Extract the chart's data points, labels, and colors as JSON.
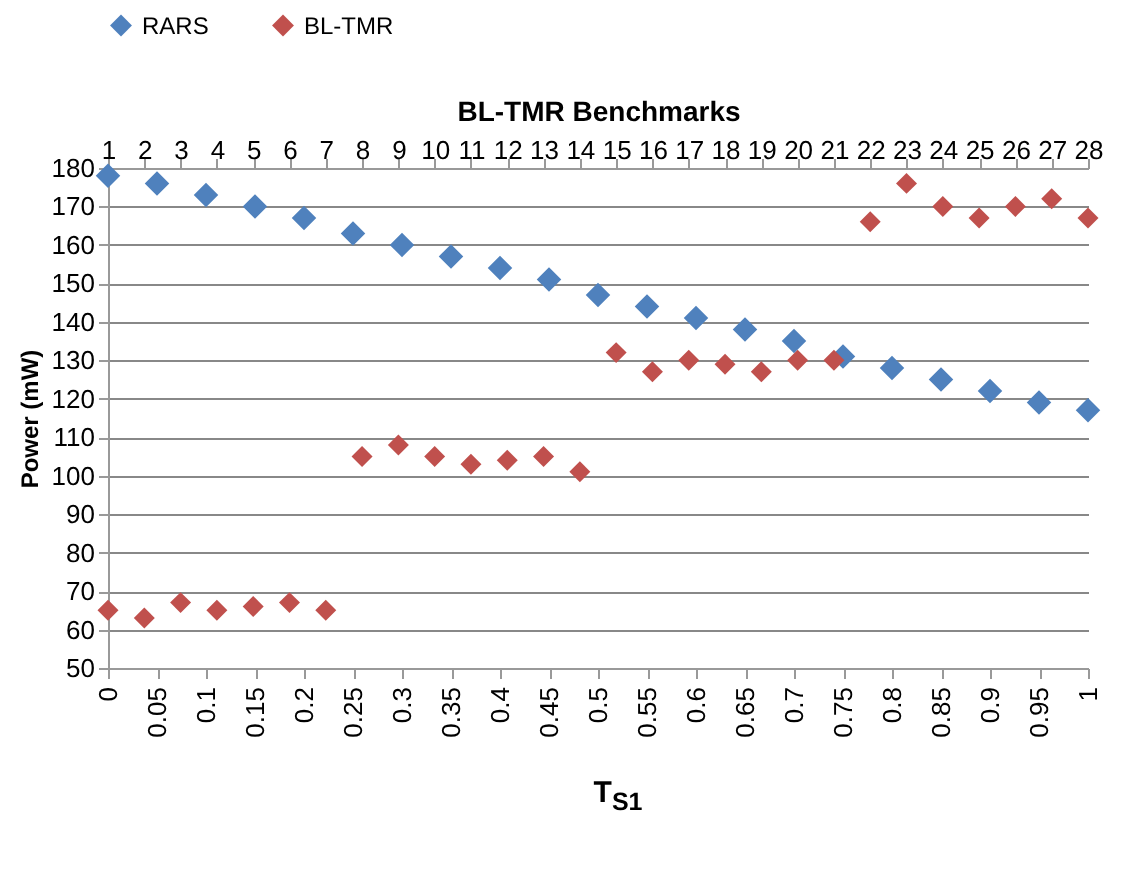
{
  "chart_data": {
    "type": "scatter",
    "xlabel": "T$_{S1}$",
    "ylabel": "Power (mW)",
    "x2label": "BL-TMR Benchmarks",
    "xlim": [
      0,
      1
    ],
    "xticks": [
      0,
      0.05,
      0.1,
      0.15,
      0.2,
      0.25,
      0.3,
      0.35,
      0.4,
      0.45,
      0.5,
      0.55,
      0.6,
      0.65,
      0.7,
      0.75,
      0.8,
      0.85,
      0.9,
      0.95,
      1
    ],
    "x2lim": [
      1,
      28
    ],
    "x2ticks": [
      1,
      2,
      3,
      4,
      5,
      6,
      7,
      8,
      9,
      10,
      11,
      12,
      13,
      14,
      15,
      16,
      17,
      18,
      19,
      20,
      21,
      22,
      23,
      24,
      25,
      26,
      27,
      28
    ],
    "ylim": [
      50,
      180
    ],
    "yticks": [
      50,
      60,
      70,
      80,
      90,
      100,
      110,
      120,
      130,
      140,
      150,
      160,
      170,
      180
    ],
    "grid": "y",
    "legend": "top",
    "marker": "diamond",
    "series": [
      {
        "name": "RARS",
        "color": "#4f81bd",
        "x": [
          0,
          0.05,
          0.1,
          0.15,
          0.2,
          0.25,
          0.3,
          0.35,
          0.4,
          0.45,
          0.5,
          0.55,
          0.6,
          0.65,
          0.7,
          0.75,
          0.8,
          0.85,
          0.9,
          0.95,
          1
        ],
        "values": [
          178,
          176,
          173,
          170,
          167,
          163,
          160,
          157,
          154,
          151,
          147,
          144,
          141,
          138,
          135,
          131,
          128,
          125,
          122,
          119,
          117
        ]
      },
      {
        "name": "BL-TMR",
        "color": "#c0504d",
        "axis": "x2",
        "x": [
          1,
          2,
          3,
          4,
          5,
          6,
          7,
          8,
          9,
          10,
          11,
          12,
          13,
          14,
          15,
          16,
          17,
          18,
          19,
          20,
          21,
          22,
          23,
          24,
          25,
          26,
          27,
          28
        ],
        "values": [
          65,
          63,
          67,
          65,
          66,
          67,
          65,
          105,
          108,
          105,
          103,
          104,
          105,
          101,
          132,
          127,
          130,
          129,
          127,
          130,
          130,
          166,
          176,
          170,
          167,
          170,
          172,
          167
        ]
      }
    ]
  }
}
